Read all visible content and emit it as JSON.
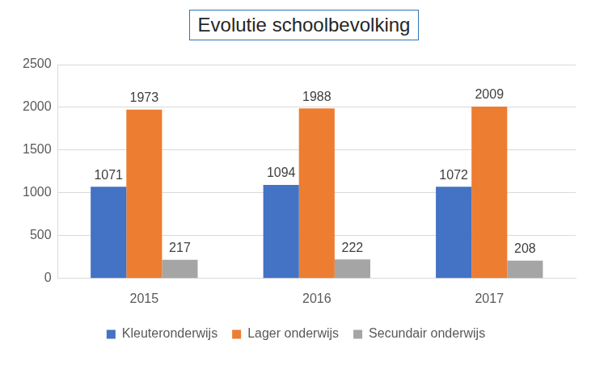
{
  "chart_data": {
    "type": "bar",
    "title": "Evolutie schoolbevolking",
    "categories": [
      "2015",
      "2016",
      "2017"
    ],
    "series": [
      {
        "name": "Kleuteronderwijs",
        "color": "#4472c4",
        "values": [
          1071,
          1094,
          1072
        ]
      },
      {
        "name": "Lager onderwijs",
        "color": "#ed7d31",
        "values": [
          1973,
          1988,
          2009
        ]
      },
      {
        "name": "Secundair onderwijs",
        "color": "#a5a5a5",
        "values": [
          217,
          222,
          208
        ]
      }
    ],
    "ylim": [
      0,
      2500
    ],
    "yticks": [
      0,
      500,
      1000,
      1500,
      2000,
      2500
    ],
    "grid": true,
    "legend": "bottom",
    "data_labels": true
  }
}
